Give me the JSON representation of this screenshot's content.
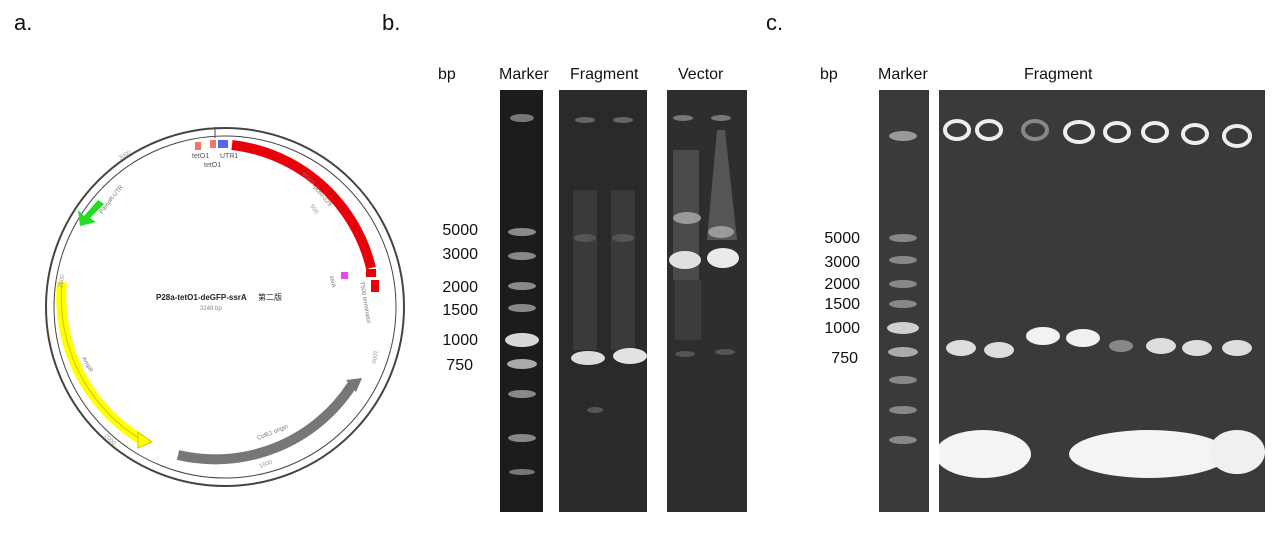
{
  "panels": {
    "a": "a.",
    "b": "b.",
    "c": "c."
  },
  "plasmid": {
    "name": "P28a-tetO1-deGFP-ssrA",
    "name_suffix": "第二版",
    "size": "3248 bp",
    "features": {
      "teto1_a": "tetO1",
      "utr1": "UTR1",
      "teto1_b": "tetO1",
      "degfp": "eGFP-pcbv-229",
      "t500": "T500 terminator",
      "ssra": "ssrA",
      "colei": "ColE1 origin",
      "ampr": "AmpR",
      "pampr": "PampR-UTR"
    },
    "ticks": {
      "t500": "500",
      "t1000": "1000",
      "t1500": "1500",
      "t2000": "2000",
      "t2500": "2500",
      "t3000": "3000"
    }
  },
  "gel_b": {
    "bp_header": "bp",
    "lanes": {
      "marker": "Marker",
      "fragment": "Fragment",
      "vector": "Vector"
    },
    "sizes": [
      "5000",
      "3000",
      "2000",
      "1500",
      "1000",
      "750"
    ]
  },
  "gel_c": {
    "bp_header": "bp",
    "lanes": {
      "marker": "Marker",
      "fragment": "Fragment"
    },
    "sizes": [
      "5000",
      "3000",
      "2000",
      "1500",
      "1000",
      "750"
    ]
  },
  "colors": {
    "degfp": "#e8000b",
    "ampr": "#ffff00",
    "colei": "#777777",
    "pampr": "#22dd22",
    "ssra": "#ee44ee",
    "utr": "#5566ee",
    "teto": "#ee7766"
  }
}
